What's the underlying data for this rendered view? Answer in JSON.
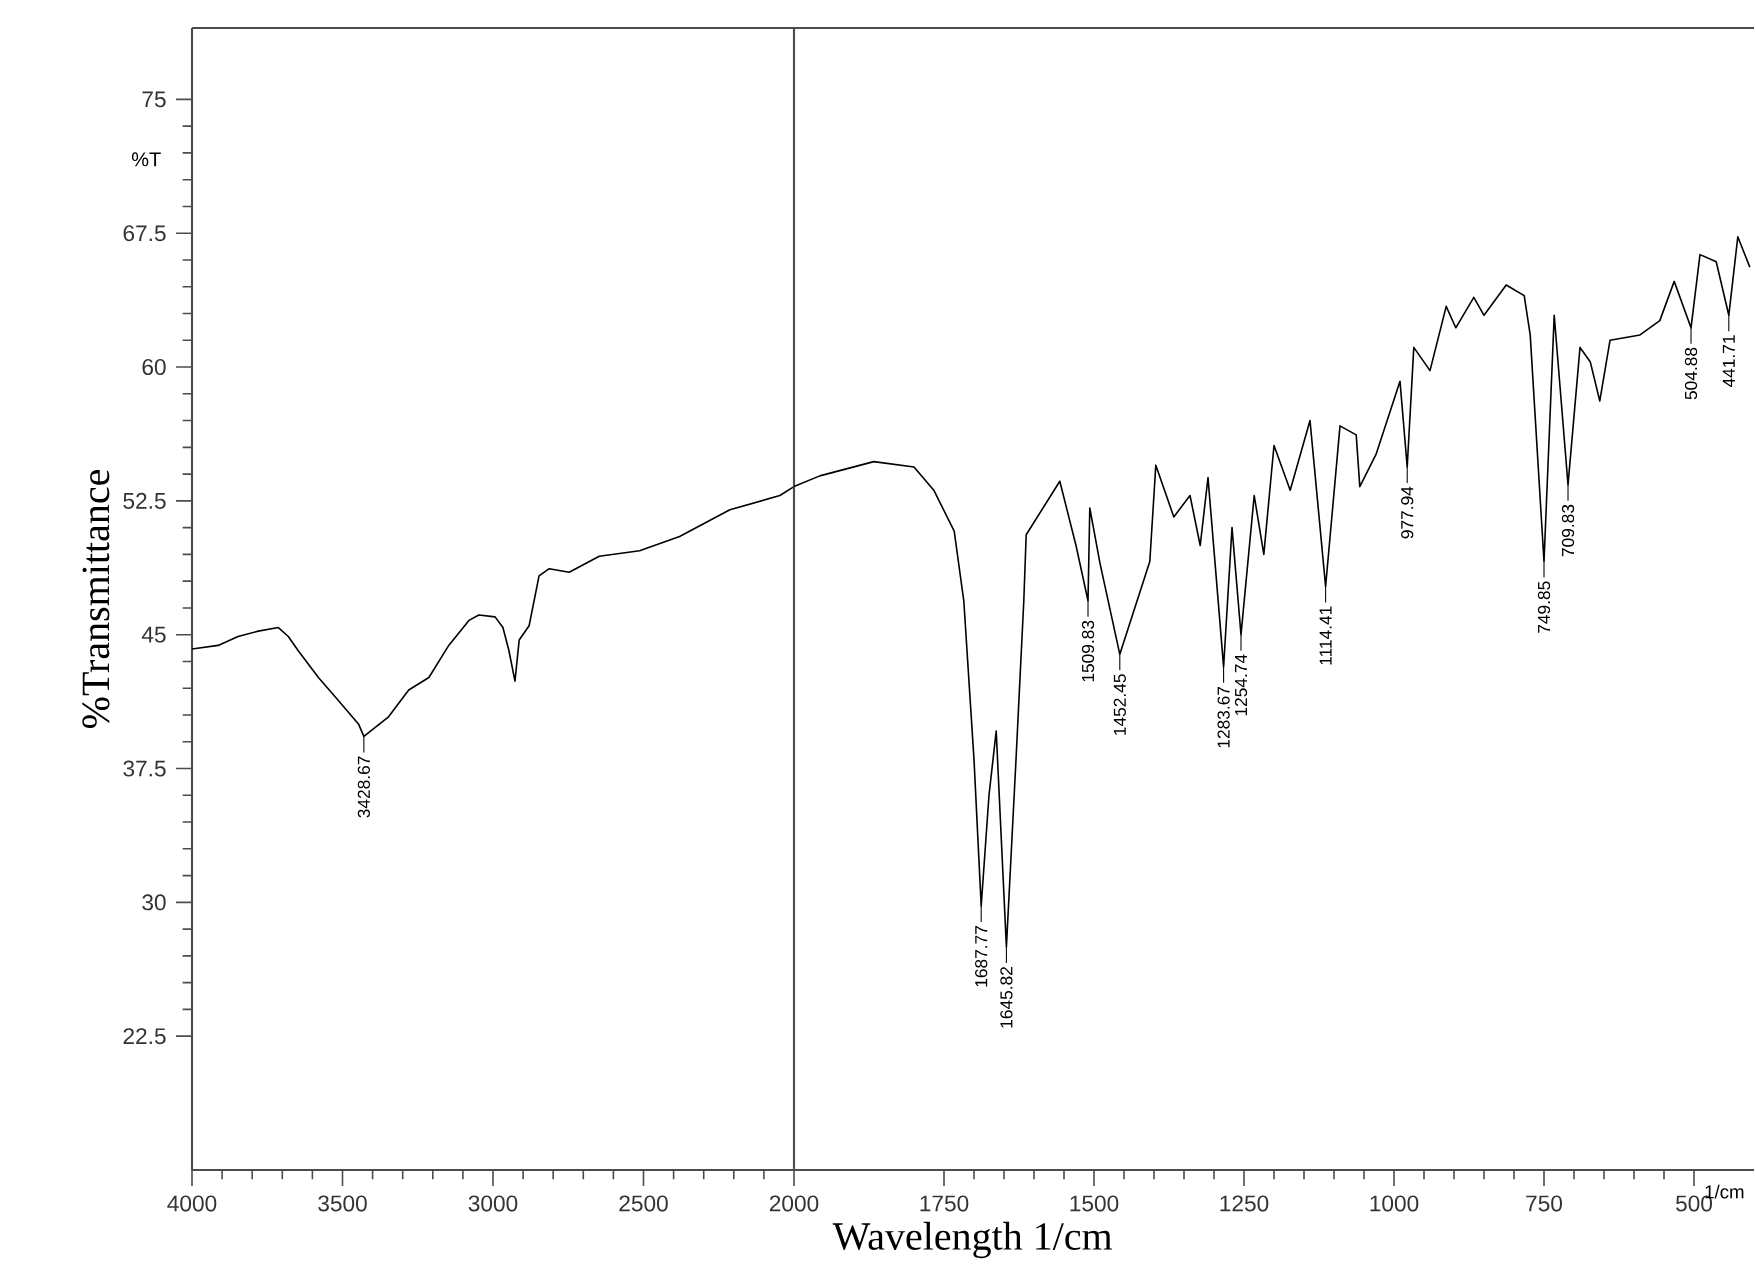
{
  "chart_data": [
    {
      "type": "line",
      "ylabel": "%Transmittance",
      "xlim": [
        4000,
        2000
      ],
      "ylim": [
        15,
        79
      ],
      "xticks": [
        4000,
        3500,
        3000,
        2500,
        2000
      ],
      "yticks": [
        22.5,
        30,
        37.5,
        45,
        52.5,
        60,
        67.5,
        75
      ],
      "color": "#000000",
      "x": [
        4000,
        3913,
        3847,
        3780,
        3713,
        3680,
        3647,
        3580,
        3513,
        3447,
        3429,
        3347,
        3280,
        3213,
        3147,
        3080,
        3047,
        2993,
        2967,
        2947,
        2927,
        2913,
        2880,
        2847,
        2813,
        2747,
        2647,
        2513,
        2380,
        2213,
        2047,
        2000
      ],
      "values": [
        44.2,
        44.4,
        44.9,
        45.2,
        45.4,
        44.9,
        44.1,
        42.6,
        41.3,
        40.0,
        39.3,
        40.4,
        41.9,
        42.6,
        44.4,
        45.8,
        46.1,
        46.0,
        45.4,
        44.1,
        42.4,
        44.7,
        45.5,
        48.3,
        48.7,
        48.5,
        49.4,
        49.7,
        50.5,
        52.0,
        52.8,
        53.3
      ],
      "annotations": [
        "%T",
        {
          "text": "3428.67",
          "x": 3429,
          "y": 39.3
        }
      ]
    },
    {
      "type": "line",
      "xlabel": "Wavelength 1/cm",
      "tick_labels": "x",
      "xlim": [
        2000,
        400
      ],
      "ylim": [
        15,
        79
      ],
      "xticks": [
        1750,
        1500,
        1250,
        1000,
        750,
        500
      ],
      "color": "#000000",
      "x": [
        2000,
        1957,
        1867,
        1800,
        1767,
        1733,
        1717,
        1700,
        1688,
        1675,
        1663,
        1646,
        1630,
        1617,
        1613,
        1557,
        1530,
        1510,
        1507,
        1490,
        1457,
        1407,
        1397,
        1367,
        1340,
        1323,
        1310,
        1284,
        1270,
        1255,
        1233,
        1217,
        1200,
        1173,
        1140,
        1114,
        1090,
        1063,
        1057,
        1030,
        990,
        978,
        967,
        940,
        913,
        897,
        867,
        850,
        813,
        783,
        773,
        750,
        733,
        710,
        690,
        673,
        657,
        640,
        590,
        557,
        533,
        505,
        490,
        463,
        442,
        427,
        407
      ],
      "values": [
        53.3,
        53.9,
        54.7,
        54.4,
        53.1,
        50.8,
        46.9,
        38,
        29.8,
        36,
        39.6,
        27.5,
        38,
        46.9,
        50.6,
        53.6,
        50,
        46.9,
        52.1,
        49,
        43.9,
        49.1,
        54.5,
        51.6,
        52.8,
        50.0,
        53.8,
        43.2,
        51.0,
        45.0,
        52.8,
        49.5,
        55.6,
        53.1,
        57.0,
        47.7,
        56.7,
        56.2,
        53.3,
        55.1,
        59.2,
        54.4,
        61.1,
        59.8,
        63.4,
        62.2,
        63.9,
        62.9,
        64.6,
        64.0,
        61.8,
        49.1,
        62.9,
        53.4,
        61.1,
        60.3,
        58.1,
        61.5,
        61.8,
        62.6,
        64.8,
        62.2,
        66.3,
        65.9,
        62.9,
        67.3,
        65.6
      ],
      "annotations": [
        "1/cm",
        {
          "text": "1687.77",
          "x": 1688,
          "y": 29.8
        },
        {
          "text": "1645.82",
          "x": 1646,
          "y": 27.5
        },
        {
          "text": "1509.83",
          "x": 1510,
          "y": 46.9
        },
        {
          "text": "1452.45",
          "x": 1457,
          "y": 43.9
        },
        {
          "text": "1283.67",
          "x": 1284,
          "y": 43.2
        },
        {
          "text": "1254.74",
          "x": 1255,
          "y": 45.0
        },
        {
          "text": "1114.41",
          "x": 1114,
          "y": 47.7
        },
        {
          "text": "977.94",
          "x": 978,
          "y": 54.4
        },
        {
          "text": "749.85",
          "x": 750,
          "y": 49.1
        },
        {
          "text": "709.83",
          "x": 710,
          "y": 53.4
        },
        {
          "text": "504.88",
          "x": 505,
          "y": 62.2
        },
        {
          "text": "441.71",
          "x": 442,
          "y": 62.9
        }
      ]
    }
  ]
}
